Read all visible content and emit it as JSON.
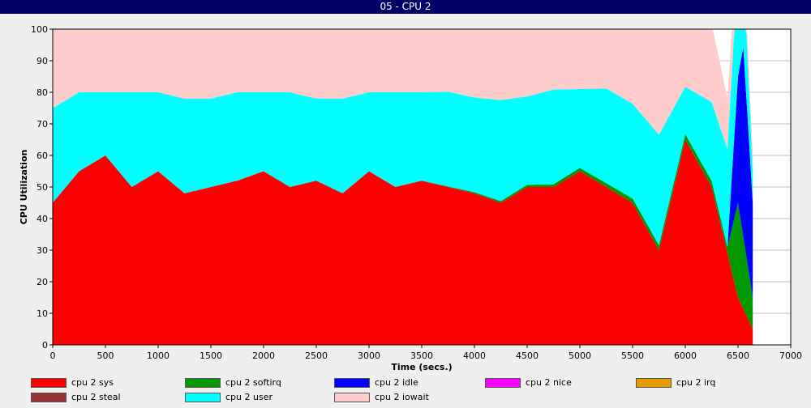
{
  "window": {
    "title": "05 - CPU 2"
  },
  "chart_data": {
    "type": "area",
    "stacked": true,
    "title": "05 - CPU 2",
    "xlabel": "Time (secs.)",
    "ylabel": "CPU Utilization",
    "xlim": [
      0,
      7000
    ],
    "ylim": [
      0,
      100
    ],
    "x_ticks": [
      "0",
      "500",
      "1000",
      "1500",
      "2000",
      "2500",
      "3000",
      "3500",
      "4000",
      "4500",
      "5000",
      "5500",
      "6000",
      "6500",
      "7000"
    ],
    "y_ticks": [
      "0",
      "10",
      "20",
      "30",
      "40",
      "50",
      "60",
      "70",
      "80",
      "90",
      "100"
    ],
    "grid": true,
    "legend_position": "bottom",
    "series": [
      {
        "name": "cpu 2 sys",
        "color": "#ff0000",
        "x": [
          0,
          250,
          500,
          750,
          1000,
          1250,
          1500,
          1750,
          2000,
          2250,
          2500,
          2750,
          3000,
          3250,
          3500,
          3750,
          4000,
          4250,
          4500,
          4750,
          5000,
          5250,
          5500,
          5750,
          6000,
          6250,
          6500,
          6640
        ],
        "values": [
          45,
          55,
          60,
          50,
          55,
          48,
          50,
          52,
          55,
          50,
          52,
          48,
          55,
          50,
          52,
          50,
          48,
          45,
          50,
          50,
          55,
          50,
          45,
          30,
          65,
          50,
          15,
          5
        ]
      },
      {
        "name": "cpu 2 softirq",
        "color": "#009900",
        "x": [
          0,
          3500,
          6400,
          6500,
          6640
        ],
        "values": [
          0,
          0,
          2,
          30,
          10
        ]
      },
      {
        "name": "cpu 2 idle",
        "color": "#0000ff",
        "x": [
          0,
          6400,
          6450,
          6500,
          6550,
          6640
        ],
        "values": [
          0,
          0,
          20,
          40,
          60,
          30
        ]
      },
      {
        "name": "cpu 2 nice",
        "color": "#ff00ff",
        "x": [
          0,
          6640
        ],
        "values": [
          0,
          0
        ]
      },
      {
        "name": "cpu 2 irq",
        "color": "#e69900",
        "x": [
          0,
          6640
        ],
        "values": [
          0,
          0
        ]
      },
      {
        "name": "cpu 2 steal",
        "color": "#993333",
        "x": [
          0,
          6640
        ],
        "values": [
          0,
          0
        ]
      },
      {
        "name": "cpu 2 user",
        "color": "#00ffff",
        "x": [
          0,
          250,
          500,
          750,
          1000,
          1250,
          1500,
          1750,
          2000,
          2250,
          2500,
          2750,
          3000,
          3250,
          3500,
          3750,
          4000,
          4250,
          4500,
          4750,
          5000,
          5250,
          5500,
          5750,
          6000,
          6250,
          6500,
          6640
        ],
        "values": [
          30,
          25,
          20,
          30,
          25,
          30,
          28,
          28,
          25,
          30,
          26,
          30,
          25,
          30,
          28,
          30,
          30,
          32,
          28,
          30,
          25,
          30,
          30,
          35,
          15,
          25,
          35,
          10
        ]
      },
      {
        "name": "cpu 2 iowait",
        "color": "#ffcccc",
        "x": [
          0,
          250,
          500,
          750,
          1000,
          1250,
          1500,
          1750,
          2000,
          2250,
          2500,
          2750,
          3000,
          3250,
          3500,
          3750,
          4000,
          4250,
          4500,
          4750,
          5000,
          5250,
          5500,
          5750,
          6000,
          6250,
          6500,
          6640
        ],
        "values": [
          25,
          20,
          20,
          20,
          20,
          22,
          22,
          20,
          20,
          20,
          22,
          22,
          20,
          20,
          20,
          20,
          22,
          23,
          22,
          20,
          20,
          20,
          25,
          35,
          20,
          25,
          10,
          5
        ]
      }
    ]
  }
}
